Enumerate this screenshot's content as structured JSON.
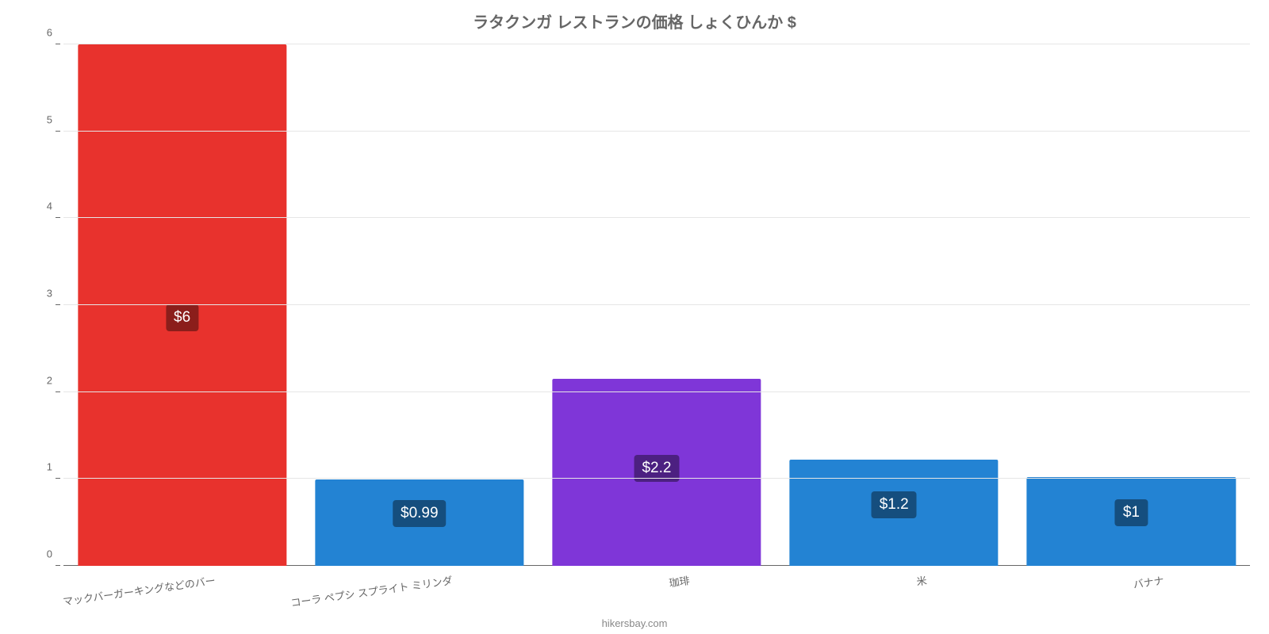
{
  "chart": {
    "type": "bar",
    "title": "ラタクンガ レストランの価格 しょくひんか $",
    "title_fontsize": 20,
    "title_color": "#666666",
    "attribution": "hikersbay.com",
    "attribution_color": "#888888",
    "background_color": "#ffffff",
    "grid_color": "#e6e6e6",
    "axis_color": "#666666",
    "tick_label_color": "#666666",
    "tick_label_fontsize": 13,
    "ylim": [
      0,
      6
    ],
    "ytick_step": 1,
    "xlabel_rotation_deg": -8,
    "bar_width_ratio": 0.88,
    "categories": [
      "マックバーガーキングなどのバー",
      "コーラ ペプシ スプライト ミリンダ",
      "珈琲",
      "米",
      "バナナ"
    ],
    "values": [
      6,
      0.99,
      2.15,
      1.22,
      1.02
    ],
    "value_labels": [
      "$6",
      "$0.99",
      "$2.2",
      "$1.2",
      "$1"
    ],
    "bar_colors": [
      "#e8322d",
      "#2383d3",
      "#7f36d8",
      "#2383d3",
      "#2383d3"
    ],
    "badge_bg": "#00000066",
    "badge_text_color": "#ffffff",
    "badge_fontsize": 19
  }
}
